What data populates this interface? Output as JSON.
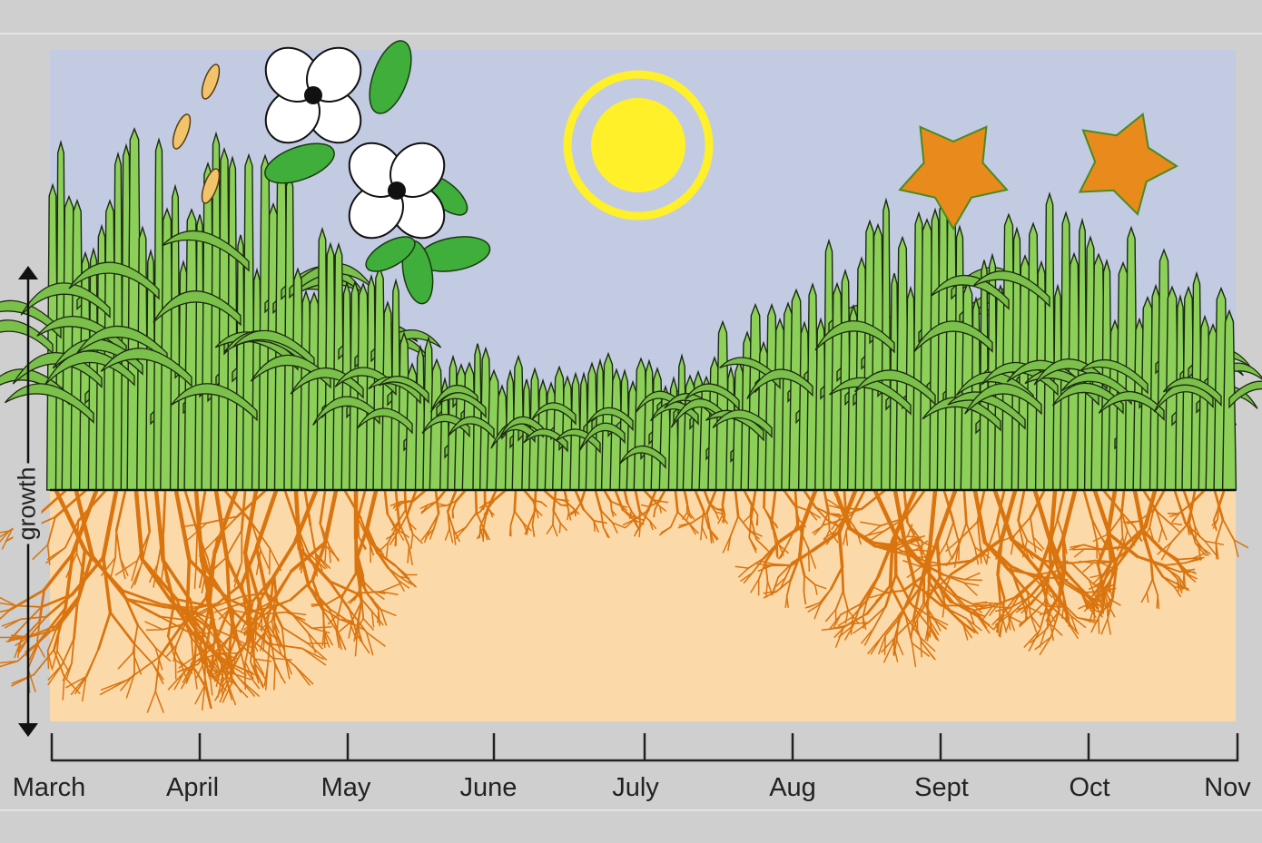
{
  "diagram": {
    "y_axis_label": "growth",
    "months": [
      "March",
      "April",
      "May",
      "June",
      "July",
      "Aug",
      "Sept",
      "Oct",
      "Nov"
    ],
    "colors": {
      "background": "#cfcfcf",
      "sky": "#c3cbe3",
      "soil": "#fcd9a8",
      "roots": "#d9740f",
      "grass": "#8cd05a",
      "grass_outline": "#1b2a10",
      "sun": "#fff02a",
      "leaf_autumn": "#e88a1c",
      "flower": "#ffffff"
    },
    "icons": [
      "dogwood-flower-icon",
      "sun-icon",
      "maple-leaf-icon",
      "grass-seedhead-icon",
      "growth-arrow-icon"
    ]
  }
}
